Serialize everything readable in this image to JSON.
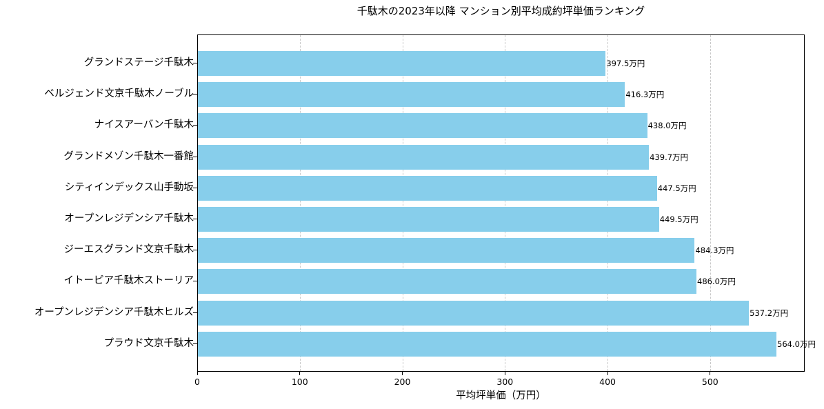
{
  "title": "千駄木の2023年以降 マンション別平均成約坪単価ランキング",
  "xlabel": "平均坪単価（万円）",
  "colors": {
    "bar": "#87ceeb",
    "grid": "#c8c8c8",
    "axis": "#000000"
  },
  "xticks": [
    "0",
    "100",
    "200",
    "300",
    "400",
    "500"
  ],
  "rows": [
    {
      "name": "グランドステージ千駄木",
      "value": 397.5,
      "label": "397.5万円"
    },
    {
      "name": "ベルジェンド文京千駄木ノーブル",
      "value": 416.3,
      "label": "416.3万円"
    },
    {
      "name": "ナイスアーバン千駄木",
      "value": 438.0,
      "label": "438.0万円"
    },
    {
      "name": "グランドメゾン千駄木一番館",
      "value": 439.7,
      "label": "439.7万円"
    },
    {
      "name": "シティインデックス山手動坂",
      "value": 447.5,
      "label": "447.5万円"
    },
    {
      "name": "オープンレジデンシア千駄木",
      "value": 449.5,
      "label": "449.5万円"
    },
    {
      "name": "ジーエスグランド文京千駄木",
      "value": 484.3,
      "label": "484.3万円"
    },
    {
      "name": "イトーピア千駄木ストーリア",
      "value": 486.0,
      "label": "486.0万円"
    },
    {
      "name": "オープンレジデンシア千駄木ヒルズ",
      "value": 537.2,
      "label": "537.2万円"
    },
    {
      "name": "プラウド文京千駄木",
      "value": 564.0,
      "label": "564.0万円"
    }
  ],
  "chart_data": {
    "type": "bar",
    "orientation": "horizontal",
    "title": "千駄木の2023年以降 マンション別平均成約坪単価ランキング",
    "xlabel": "平均坪単価（万円）",
    "ylabel": "",
    "categories": [
      "グランドステージ千駄木",
      "ベルジェンド文京千駄木ノーブル",
      "ナイスアーバン千駄木",
      "グランドメゾン千駄木一番館",
      "シティインデックス山手動坂",
      "オープンレジデンシア千駄木",
      "ジーエスグランド文京千駄木",
      "イトーピア千駄木ストーリア",
      "オープンレジデンシア千駄木ヒルズ",
      "プラウド文京千駄木"
    ],
    "values": [
      397.5,
      416.3,
      438.0,
      439.7,
      447.5,
      449.5,
      484.3,
      486.0,
      537.2,
      564.0
    ],
    "data_labels": [
      "397.5万円",
      "416.3万円",
      "438.0万円",
      "439.7万円",
      "447.5万円",
      "449.5万円",
      "484.3万円",
      "486.0万円",
      "537.2万円",
      "564.0万円"
    ],
    "xlim": [
      0,
      592.2
    ],
    "xticks": [
      0,
      100,
      200,
      300,
      400,
      500
    ],
    "grid": {
      "x": true,
      "y": false,
      "style": "dashed"
    },
    "legend": null,
    "bar_color": "#87ceeb"
  }
}
